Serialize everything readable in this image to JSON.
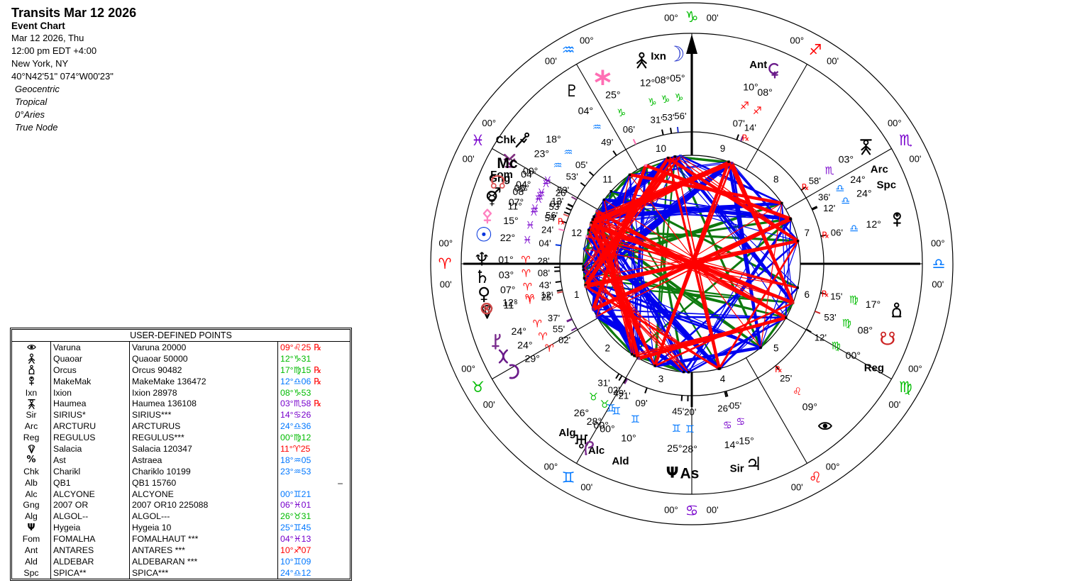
{
  "header": {
    "title": "Transits Mar 12 2026",
    "subtitle": "Event Chart",
    "lines": [
      "Mar 12 2026, Thu",
      "12:00 pm  EDT +4:00",
      "New York, NY",
      "40°N42'51\" 074°W00'23\""
    ],
    "settings": [
      "Geocentric",
      "Tropical",
      "0°Aries",
      "True Node"
    ]
  },
  "table": {
    "title": "USER-DEFINED POINTS",
    "rows": [
      {
        "glyph": "varuna",
        "name": "Varuna",
        "full": "Varuna 20000",
        "pos": {
          "d": "09",
          "sign": "leo",
          "m": "25",
          "rx": true
        }
      },
      {
        "glyph": "quaoar",
        "name": "Quaoar",
        "full": "Quaoar 50000",
        "pos": {
          "d": "12",
          "sign": "capricorn",
          "m": "31",
          "rx": false
        }
      },
      {
        "glyph": "orcus",
        "name": "Orcus",
        "full": "Orcus 90482",
        "pos": {
          "d": "17",
          "sign": "virgo",
          "m": "15",
          "rx": true
        }
      },
      {
        "glyph": "makemake",
        "name": "MakeMak",
        "full": "MakeMake 136472",
        "pos": {
          "d": "12",
          "sign": "libra",
          "m": "06",
          "rx": true
        }
      },
      {
        "glyph": null,
        "mnemonic": "Ixn",
        "name": "Ixion",
        "full": "Ixion 28978",
        "pos": {
          "d": "08",
          "sign": "capricorn",
          "m": "53",
          "rx": false
        }
      },
      {
        "glyph": "haumea",
        "name": "Haumea",
        "full": "Haumea 136108",
        "pos": {
          "d": "03",
          "sign": "scorpio",
          "m": "58",
          "rx": true
        }
      },
      {
        "glyph": null,
        "mnemonic": "Sir",
        "name": "SIRIUS*",
        "full": "SIRIUS***",
        "pos": {
          "d": "14",
          "sign": "cancer",
          "m": "26",
          "rx": false
        }
      },
      {
        "glyph": null,
        "mnemonic": "Arc",
        "name": "ARCTURU",
        "full": "ARCTURUS",
        "pos": {
          "d": "24",
          "sign": "libra",
          "m": "36",
          "rx": false
        }
      },
      {
        "glyph": null,
        "mnemonic": "Reg",
        "name": "REGULUS",
        "full": "REGULUS***",
        "pos": {
          "d": "00",
          "sign": "virgo",
          "m": "12",
          "rx": false
        }
      },
      {
        "glyph": "salacia",
        "name": "Salacia",
        "full": "Salacia 120347",
        "pos": {
          "d": "11",
          "sign": "aries",
          "m": "25",
          "rx": false
        }
      },
      {
        "glyph": "astraea",
        "name": "Ast",
        "full": "Astraea",
        "pos": {
          "d": "18",
          "sign": "aquarius",
          "m": "05",
          "rx": false
        }
      },
      {
        "glyph": null,
        "mnemonic": "Chk",
        "name": "Charikl",
        "full": "Chariklo 10199",
        "pos": {
          "d": "23",
          "sign": "aquarius",
          "m": "53",
          "rx": false
        }
      },
      {
        "glyph": null,
        "mnemonic": "Alb",
        "name": "QB1",
        "full": "QB1 15760",
        "pos": null,
        "dash": "–"
      },
      {
        "glyph": null,
        "mnemonic": "Alc",
        "name": "ALCYONE",
        "full": "ALCYONE",
        "pos": {
          "d": "00",
          "sign": "gemini",
          "m": "21",
          "rx": false
        }
      },
      {
        "glyph": null,
        "mnemonic": "Gng",
        "name": "2007 OR",
        "full": "2007 OR10 225088",
        "pos": {
          "d": "06",
          "sign": "pisces",
          "m": "01",
          "rx": false
        }
      },
      {
        "glyph": null,
        "mnemonic": "Alg",
        "name": "ALGOL--",
        "full": "ALGOL---",
        "pos": {
          "d": "26",
          "sign": "taurus",
          "m": "31",
          "rx": false
        }
      },
      {
        "glyph": "hygeia",
        "name": "Hygeia",
        "full": "Hygeia 10",
        "pos": {
          "d": "25",
          "sign": "gemini",
          "m": "45",
          "rx": false
        }
      },
      {
        "glyph": null,
        "mnemonic": "Fom",
        "name": "FOMALHA",
        "full": "FOMALHAUT ***",
        "pos": {
          "d": "04",
          "sign": "pisces",
          "m": "13",
          "rx": false
        }
      },
      {
        "glyph": null,
        "mnemonic": "Ant",
        "name": "ANTARES",
        "full": "ANTARES ***",
        "pos": {
          "d": "10",
          "sign": "sagittarius",
          "m": "07",
          "rx": false
        }
      },
      {
        "glyph": null,
        "mnemonic": "Ald",
        "name": "ALDEBAR",
        "full": "ALDEBARAN ***",
        "pos": {
          "d": "10",
          "sign": "gemini",
          "m": "09",
          "rx": false
        }
      },
      {
        "glyph": null,
        "mnemonic": "Spc",
        "name": "SPICA**",
        "full": "SPICA***",
        "pos": {
          "d": "24",
          "sign": "libra",
          "m": "12",
          "rx": false
        }
      }
    ]
  },
  "chart_data": {
    "type": "astrology-wheel",
    "zodiac": [
      {
        "key": "aries",
        "element": "fire"
      },
      {
        "key": "taurus",
        "element": "earth"
      },
      {
        "key": "gemini",
        "element": "air"
      },
      {
        "key": "cancer",
        "element": "water"
      },
      {
        "key": "leo",
        "element": "fire"
      },
      {
        "key": "virgo",
        "element": "earth"
      },
      {
        "key": "libra",
        "element": "air"
      },
      {
        "key": "scorpio",
        "element": "water"
      },
      {
        "key": "sagittarius",
        "element": "fire"
      },
      {
        "key": "capricorn",
        "element": "earth"
      },
      {
        "key": "aquarius",
        "element": "air"
      },
      {
        "key": "pisces",
        "element": "water"
      }
    ],
    "cusp_degree_label": "00°",
    "cusp_minute_label": "00'",
    "retrograde_label": "℞",
    "houses": [
      "1",
      "2",
      "3",
      "4",
      "5",
      "6",
      "7",
      "8",
      "9",
      "10",
      "11",
      "12"
    ],
    "objects": [
      {
        "id": "moon",
        "glyph": "moon",
        "sign": "capricorn",
        "d": 5,
        "m": 56,
        "rx": false
      },
      {
        "id": "ixion",
        "label": "Ixn",
        "sign": "capricorn",
        "d": 8,
        "m": 53,
        "rx": false
      },
      {
        "id": "quaoar",
        "glyph": "quaoar",
        "sign": "capricorn",
        "d": 12,
        "m": 31,
        "rx": false
      },
      {
        "id": "juno",
        "glyph": "juno",
        "sign": "capricorn",
        "d": 25,
        "m": 6,
        "rx": false
      },
      {
        "id": "pluto",
        "glyph": "pluto",
        "sign": "aquarius",
        "d": 4,
        "m": 49,
        "rx": false
      },
      {
        "id": "astraea",
        "sign": "aquarius",
        "d": 18,
        "m": 5,
        "rx": false
      },
      {
        "id": "chariklo",
        "label": "Chk",
        "glyph": "chariklo",
        "sign": "aquarius",
        "d": 23,
        "m": 53,
        "rx": false
      },
      {
        "id": "vesta",
        "glyph": "vesta",
        "sign": "pisces",
        "d": 0,
        "m": 53,
        "rx": false
      },
      {
        "id": "fomalhaut",
        "label": "Fom",
        "sign": "pisces",
        "d": 4,
        "m": 13,
        "rx": false
      },
      {
        "id": "midheaven",
        "label": "Mc",
        "big": true,
        "sign": "pisces",
        "d": 4,
        "m": 26,
        "rx": false
      },
      {
        "id": "gonggong",
        "label": "Gng",
        "sign": "pisces",
        "d": 6,
        "m": 1,
        "rx": false
      },
      {
        "id": "mars",
        "glyph": "mars",
        "sign": "pisces",
        "d": 7,
        "m": 56,
        "rx": false
      },
      {
        "id": "north-node",
        "glyph": "node",
        "sign": "pisces",
        "d": 8,
        "m": 53,
        "rx": false
      },
      {
        "id": "mercury",
        "glyph": "mercury",
        "sign": "pisces",
        "d": 11,
        "m": 54,
        "rx": true
      },
      {
        "id": "pallas",
        "glyph": "pallas",
        "sign": "pisces",
        "d": 15,
        "m": 24,
        "rx": false
      },
      {
        "id": "sun",
        "glyph": "sun",
        "sign": "pisces",
        "d": 22,
        "m": 4,
        "rx": false
      },
      {
        "id": "neptune",
        "glyph": "neptune",
        "sign": "aries",
        "d": 1,
        "m": 28,
        "rx": false
      },
      {
        "id": "saturn",
        "glyph": "saturn",
        "sign": "aries",
        "d": 3,
        "m": 8,
        "rx": false
      },
      {
        "id": "venus",
        "glyph": "venus",
        "sign": "aries",
        "d": 7,
        "m": 43,
        "rx": false
      },
      {
        "id": "salacia",
        "glyph": "salacia",
        "sign": "aries",
        "d": 11,
        "m": 25,
        "rx": false
      },
      {
        "id": "fortune",
        "glyph": "fortune",
        "sign": "aries",
        "d": 12,
        "m": 12,
        "rx": false
      },
      {
        "id": "chiron",
        "glyph": "chiron",
        "sign": "aries",
        "d": 24,
        "m": 37,
        "rx": false
      },
      {
        "id": "eris",
        "glyph": "eris",
        "sign": "aries",
        "d": 24,
        "m": 55,
        "rx": false
      },
      {
        "id": "sedna",
        "glyph": "sedna",
        "sign": "aries",
        "d": 29,
        "m": 2,
        "rx": false
      },
      {
        "id": "algol",
        "label": "Alg",
        "sign": "taurus",
        "d": 26,
        "m": 31,
        "rx": false
      },
      {
        "id": "uranus",
        "glyph": "uranus",
        "sign": "taurus",
        "d": 28,
        "m": 2,
        "rx": false
      },
      {
        "id": "alcyone",
        "label": "Alc",
        "sign": "gemini",
        "d": 0,
        "m": 21,
        "rx": false
      },
      {
        "id": "pholus",
        "glyph": "pholus",
        "sign": "gemini",
        "d": 0,
        "m": 49,
        "rx": false
      },
      {
        "id": "aldebaran",
        "label": "Ald",
        "sign": "gemini",
        "d": 10,
        "m": 9,
        "rx": false
      },
      {
        "id": "hygeia",
        "glyph": "hygeia",
        "sign": "gemini",
        "d": 25,
        "m": 45,
        "rx": false
      },
      {
        "id": "ascendant",
        "label": "As",
        "big": true,
        "sign": "gemini",
        "d": 28,
        "m": 20,
        "rx": false
      },
      {
        "id": "sirius",
        "label": "Sir",
        "sign": "cancer",
        "d": 14,
        "m": 26,
        "rx": false
      },
      {
        "id": "jupiter",
        "glyph": "jupiter",
        "sign": "cancer",
        "d": 15,
        "m": 5,
        "rx": false
      },
      {
        "id": "varuna",
        "glyph": "varuna",
        "sign": "leo",
        "d": 9,
        "m": 25,
        "rx": true
      },
      {
        "id": "regulus",
        "label": "Reg",
        "sign": "virgo",
        "d": 0,
        "m": 12,
        "rx": false
      },
      {
        "id": "south-node",
        "glyph": "southnode",
        "sign": "virgo",
        "d": 8,
        "m": 53,
        "rx": false
      },
      {
        "id": "orcus",
        "glyph": "orcus",
        "sign": "virgo",
        "d": 17,
        "m": 15,
        "rx": true
      },
      {
        "id": "makemake",
        "glyph": "makemake",
        "sign": "libra",
        "d": 12,
        "m": 6,
        "rx": true
      },
      {
        "id": "spica",
        "label": "Spc",
        "sign": "libra",
        "d": 24,
        "m": 12,
        "rx": false
      },
      {
        "id": "arcturus",
        "label": "Arc",
        "sign": "libra",
        "d": 24,
        "m": 36,
        "rx": false
      },
      {
        "id": "haumea",
        "glyph": "haumea",
        "sign": "scorpio",
        "d": 3,
        "m": 58,
        "rx": true
      },
      {
        "id": "ceres",
        "glyph": "ceres",
        "sign": "sagittarius",
        "d": 8,
        "m": 14,
        "rx": true
      },
      {
        "id": "antares",
        "label": "Ant",
        "sign": "sagittarius",
        "d": 10,
        "m": 7,
        "rx": false
      }
    ]
  },
  "colors": {
    "fire": "#FF0000",
    "earth": "#00BB00",
    "air": "#0077FF",
    "water": "#7700CC",
    "retrograde": "#FF0000",
    "aspect_hard": "#FF0000",
    "aspect_soft": "#0000EE",
    "aspect_minor": "#0E7A0E",
    "text": "#000000"
  }
}
